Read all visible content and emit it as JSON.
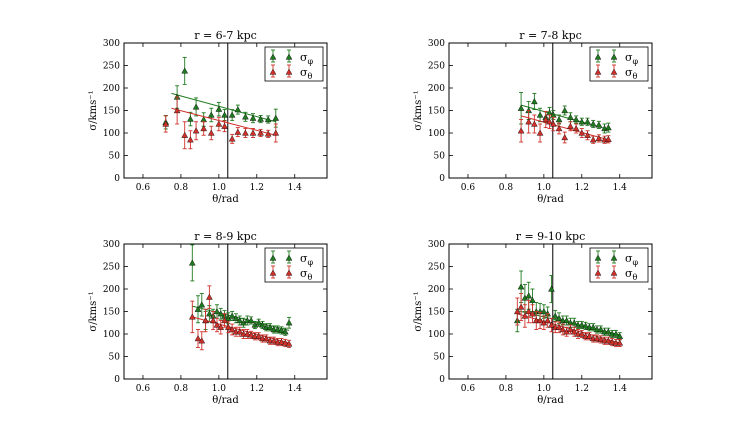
{
  "colors": {
    "phi": "#1f7a1f",
    "theta": "#d0302a",
    "axis": "#000000",
    "vline": "#000000"
  },
  "legend": {
    "phi_label": "σ",
    "phi_sub": "φ",
    "theta_label": "σ",
    "theta_sub": "θ",
    "placement": "top-right"
  },
  "chart_data": [
    {
      "type": "scatter",
      "title": "r = 6-7 kpc",
      "xlabel": "θ/rad",
      "ylabel": "σ/kms⁻¹",
      "xlim": [
        0.5,
        1.57
      ],
      "ylim": [
        0,
        300
      ],
      "xticks": [
        0.6,
        0.8,
        1.0,
        1.2,
        1.4
      ],
      "xtick_labels": [
        "0.6",
        "0.8",
        "1.0",
        "1.2",
        "1.4"
      ],
      "yticks": [
        0,
        50,
        100,
        150,
        200,
        250,
        300
      ],
      "ytick_labels": [
        "0",
        "50",
        "100",
        "150",
        "200",
        "250",
        "300"
      ],
      "vline_x": 1.047,
      "series": [
        {
          "name": "σφ",
          "key": "phi",
          "x": [
            0.72,
            0.78,
            0.82,
            0.85,
            0.88,
            0.92,
            0.96,
            1.0,
            1.03,
            1.07,
            1.1,
            1.14,
            1.18,
            1.22,
            1.26,
            1.3
          ],
          "y": [
            124,
            180,
            238,
            131,
            158,
            130,
            140,
            153,
            140,
            140,
            152,
            136,
            133,
            131,
            130,
            133
          ],
          "err": [
            15,
            25,
            30,
            15,
            20,
            15,
            15,
            15,
            12,
            12,
            10,
            10,
            10,
            8,
            8,
            20
          ],
          "fit": [
            0.75,
            188,
            1.3,
            125
          ]
        },
        {
          "name": "σθ",
          "key": "theta",
          "x": [
            0.72,
            0.78,
            0.82,
            0.85,
            0.88,
            0.92,
            0.96,
            1.0,
            1.03,
            1.07,
            1.1,
            1.14,
            1.18,
            1.22,
            1.26,
            1.3
          ],
          "y": [
            120,
            150,
            95,
            85,
            105,
            110,
            100,
            120,
            115,
            87,
            102,
            100,
            100,
            100,
            98,
            100
          ],
          "err": [
            18,
            30,
            30,
            20,
            20,
            15,
            15,
            15,
            12,
            10,
            10,
            10,
            10,
            8,
            8,
            20
          ],
          "fit": [
            0.75,
            155,
            1.3,
            95
          ]
        }
      ]
    },
    {
      "type": "scatter",
      "title": "r = 7-8 kpc",
      "xlabel": "θ/rad",
      "ylabel": "σ/kms⁻¹",
      "xlim": [
        0.5,
        1.57
      ],
      "ylim": [
        0,
        300
      ],
      "xticks": [
        0.6,
        0.8,
        1.0,
        1.2,
        1.4
      ],
      "xtick_labels": [
        "0.6",
        "0.8",
        "1.0",
        "1.2",
        "1.4"
      ],
      "yticks": [
        0,
        50,
        100,
        150,
        200,
        250,
        300
      ],
      "ytick_labels": [
        "0",
        "50",
        "100",
        "150",
        "200",
        "250",
        "300"
      ],
      "vline_x": 1.047,
      "series": [
        {
          "name": "σφ",
          "key": "phi",
          "x": [
            0.88,
            0.92,
            0.95,
            0.98,
            1.01,
            1.03,
            1.05,
            1.08,
            1.11,
            1.14,
            1.17,
            1.2,
            1.23,
            1.26,
            1.29,
            1.32,
            1.34
          ],
          "y": [
            155,
            150,
            170,
            140,
            135,
            145,
            140,
            130,
            150,
            135,
            130,
            125,
            125,
            120,
            118,
            110,
            112
          ],
          "err": [
            35,
            20,
            18,
            15,
            12,
            12,
            10,
            10,
            10,
            10,
            8,
            8,
            8,
            8,
            8,
            10,
            10
          ],
          "fit": [
            0.88,
            162,
            1.34,
            108
          ]
        },
        {
          "name": "σθ",
          "key": "theta",
          "x": [
            0.88,
            0.92,
            0.95,
            0.98,
            1.01,
            1.03,
            1.05,
            1.08,
            1.11,
            1.14,
            1.17,
            1.2,
            1.23,
            1.26,
            1.29,
            1.32,
            1.34
          ],
          "y": [
            105,
            125,
            120,
            100,
            130,
            125,
            120,
            110,
            90,
            115,
            110,
            100,
            95,
            85,
            88,
            85,
            86
          ],
          "err": [
            25,
            25,
            20,
            20,
            18,
            15,
            15,
            12,
            12,
            10,
            10,
            10,
            10,
            8,
            8,
            8,
            8
          ],
          "fit": [
            0.88,
            138,
            1.34,
            85
          ]
        }
      ]
    },
    {
      "type": "scatter",
      "title": "r = 8-9 kpc",
      "xlabel": "θ/rad",
      "ylabel": "σ/kms⁻¹",
      "xlim": [
        0.5,
        1.57
      ],
      "ylim": [
        0,
        300
      ],
      "xticks": [
        0.6,
        0.8,
        1.0,
        1.2,
        1.4
      ],
      "xtick_labels": [
        "0.6",
        "0.8",
        "1.0",
        "1.2",
        "1.4"
      ],
      "yticks": [
        0,
        50,
        100,
        150,
        200,
        250,
        300
      ],
      "ytick_labels": [
        "0",
        "50",
        "100",
        "150",
        "200",
        "250",
        "300"
      ],
      "vline_x": 1.047,
      "series": [
        {
          "name": "σφ",
          "key": "phi",
          "x": [
            0.86,
            0.89,
            0.91,
            0.93,
            0.95,
            0.97,
            0.99,
            1.01,
            1.03,
            1.05,
            1.07,
            1.09,
            1.11,
            1.13,
            1.15,
            1.17,
            1.19,
            1.21,
            1.23,
            1.25,
            1.27,
            1.29,
            1.31,
            1.33,
            1.35,
            1.37
          ],
          "y": [
            258,
            155,
            165,
            130,
            145,
            140,
            150,
            145,
            140,
            135,
            140,
            135,
            130,
            125,
            130,
            130,
            120,
            125,
            120,
            115,
            115,
            110,
            110,
            108,
            105,
            125
          ],
          "err": [
            40,
            30,
            25,
            20,
            18,
            15,
            15,
            12,
            12,
            12,
            10,
            10,
            10,
            10,
            10,
            8,
            8,
            8,
            8,
            8,
            8,
            8,
            8,
            8,
            8,
            12
          ],
          "fit": [
            0.86,
            162,
            1.37,
            108
          ]
        },
        {
          "name": "σθ",
          "key": "theta",
          "x": [
            0.86,
            0.89,
            0.91,
            0.93,
            0.95,
            0.97,
            0.99,
            1.01,
            1.03,
            1.05,
            1.07,
            1.09,
            1.11,
            1.13,
            1.15,
            1.17,
            1.19,
            1.21,
            1.23,
            1.25,
            1.27,
            1.29,
            1.31,
            1.33,
            1.35,
            1.37
          ],
          "y": [
            138,
            90,
            85,
            130,
            182,
            130,
            120,
            115,
            130,
            115,
            110,
            105,
            105,
            100,
            100,
            98,
            95,
            95,
            90,
            90,
            85,
            85,
            82,
            82,
            80,
            78
          ],
          "err": [
            35,
            20,
            20,
            25,
            25,
            20,
            15,
            15,
            15,
            12,
            12,
            10,
            10,
            10,
            10,
            8,
            8,
            8,
            8,
            8,
            8,
            8,
            8,
            8,
            8,
            8
          ],
          "fit": [
            0.86,
            138,
            1.37,
            80
          ]
        }
      ]
    },
    {
      "type": "scatter",
      "title": "r = 9-10 kpc",
      "xlabel": "θ/rad",
      "ylabel": "σ/kms⁻¹",
      "xlim": [
        0.5,
        1.57
      ],
      "ylim": [
        0,
        300
      ],
      "xticks": [
        0.6,
        0.8,
        1.0,
        1.2,
        1.4
      ],
      "xtick_labels": [
        "0.6",
        "0.8",
        "1.0",
        "1.2",
        "1.4"
      ],
      "yticks": [
        0,
        50,
        100,
        150,
        200,
        250,
        300
      ],
      "ytick_labels": [
        "0",
        "50",
        "100",
        "150",
        "200",
        "250",
        "300"
      ],
      "vline_x": 1.047,
      "series": [
        {
          "name": "σφ",
          "key": "phi",
          "x": [
            0.86,
            0.88,
            0.9,
            0.92,
            0.94,
            0.96,
            0.98,
            1.0,
            1.02,
            1.04,
            1.06,
            1.08,
            1.1,
            1.12,
            1.14,
            1.16,
            1.18,
            1.2,
            1.22,
            1.24,
            1.26,
            1.28,
            1.3,
            1.32,
            1.34,
            1.36,
            1.38,
            1.4
          ],
          "y": [
            130,
            205,
            180,
            185,
            175,
            150,
            150,
            150,
            145,
            200,
            140,
            135,
            130,
            130,
            125,
            125,
            120,
            120,
            118,
            115,
            115,
            110,
            110,
            105,
            105,
            100,
            100,
            95
          ],
          "err": [
            25,
            35,
            30,
            30,
            25,
            20,
            18,
            15,
            15,
            30,
            12,
            12,
            10,
            10,
            10,
            10,
            8,
            8,
            8,
            8,
            8,
            8,
            8,
            8,
            8,
            8,
            8,
            8
          ],
          "fit": [
            0.86,
            152,
            1.4,
            98
          ]
        },
        {
          "name": "σθ",
          "key": "theta",
          "x": [
            0.86,
            0.88,
            0.9,
            0.92,
            0.94,
            0.96,
            0.98,
            1.0,
            1.02,
            1.04,
            1.06,
            1.08,
            1.1,
            1.12,
            1.14,
            1.16,
            1.18,
            1.2,
            1.22,
            1.24,
            1.26,
            1.28,
            1.3,
            1.32,
            1.34,
            1.36,
            1.38,
            1.4
          ],
          "y": [
            150,
            160,
            140,
            150,
            145,
            130,
            130,
            125,
            130,
            120,
            115,
            115,
            110,
            105,
            110,
            105,
            100,
            100,
            95,
            95,
            90,
            90,
            88,
            85,
            85,
            82,
            80,
            80
          ],
          "err": [
            30,
            30,
            25,
            25,
            20,
            20,
            18,
            15,
            15,
            15,
            12,
            12,
            12,
            10,
            10,
            10,
            10,
            8,
            8,
            8,
            8,
            8,
            8,
            8,
            8,
            8,
            8,
            8
          ],
          "fit": [
            0.86,
            145,
            1.4,
            80
          ]
        }
      ]
    }
  ]
}
